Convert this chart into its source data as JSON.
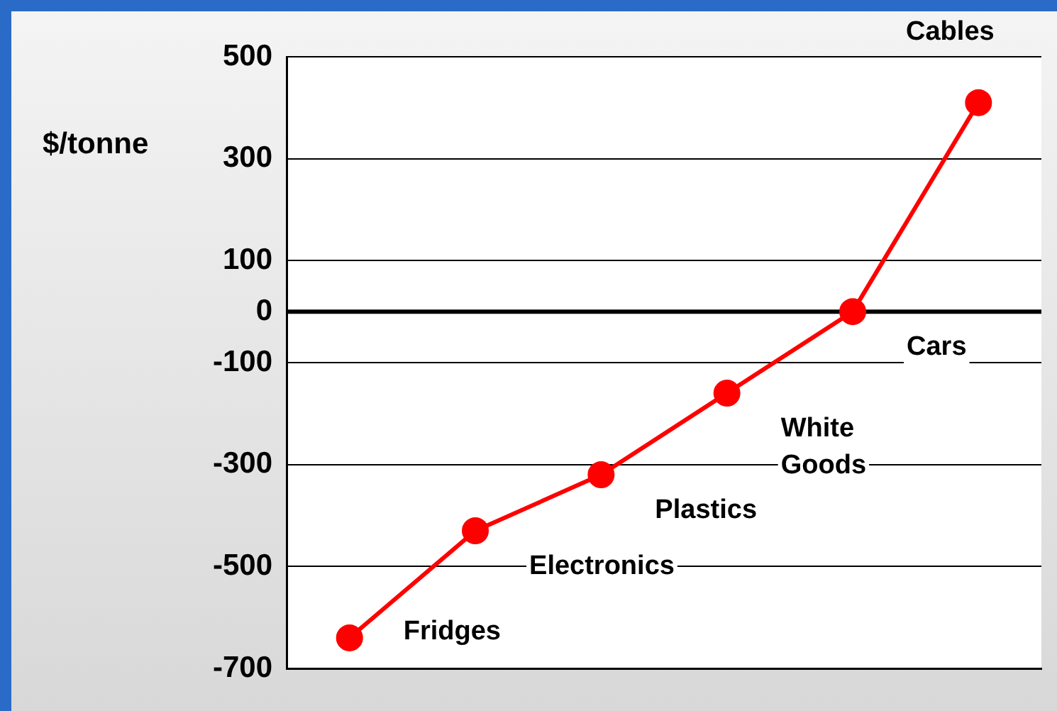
{
  "chart_data": {
    "type": "line",
    "ylabel": "$/tonne",
    "categories": [
      null,
      null,
      null,
      null,
      null,
      null
    ],
    "series": [
      {
        "color": "#ff0000",
        "values": [
          -640,
          -430,
          -320,
          -160,
          0,
          410
        ]
      }
    ],
    "ylim": [
      -700,
      500
    ],
    "yticks": [
      -700,
      -500,
      -300,
      -100,
      0,
      100,
      300,
      500
    ],
    "grid": "y",
    "legend": false,
    "marker": "circle",
    "line_style": "solid",
    "tick_labels": "y",
    "ref_lines": [
      {
        "axis": "y",
        "value": 0,
        "color": "#000000"
      }
    ],
    "annotations": [
      "Fridges",
      "Electronics",
      "Plastics",
      "White Goods",
      "Cars",
      "Cables"
    ]
  }
}
